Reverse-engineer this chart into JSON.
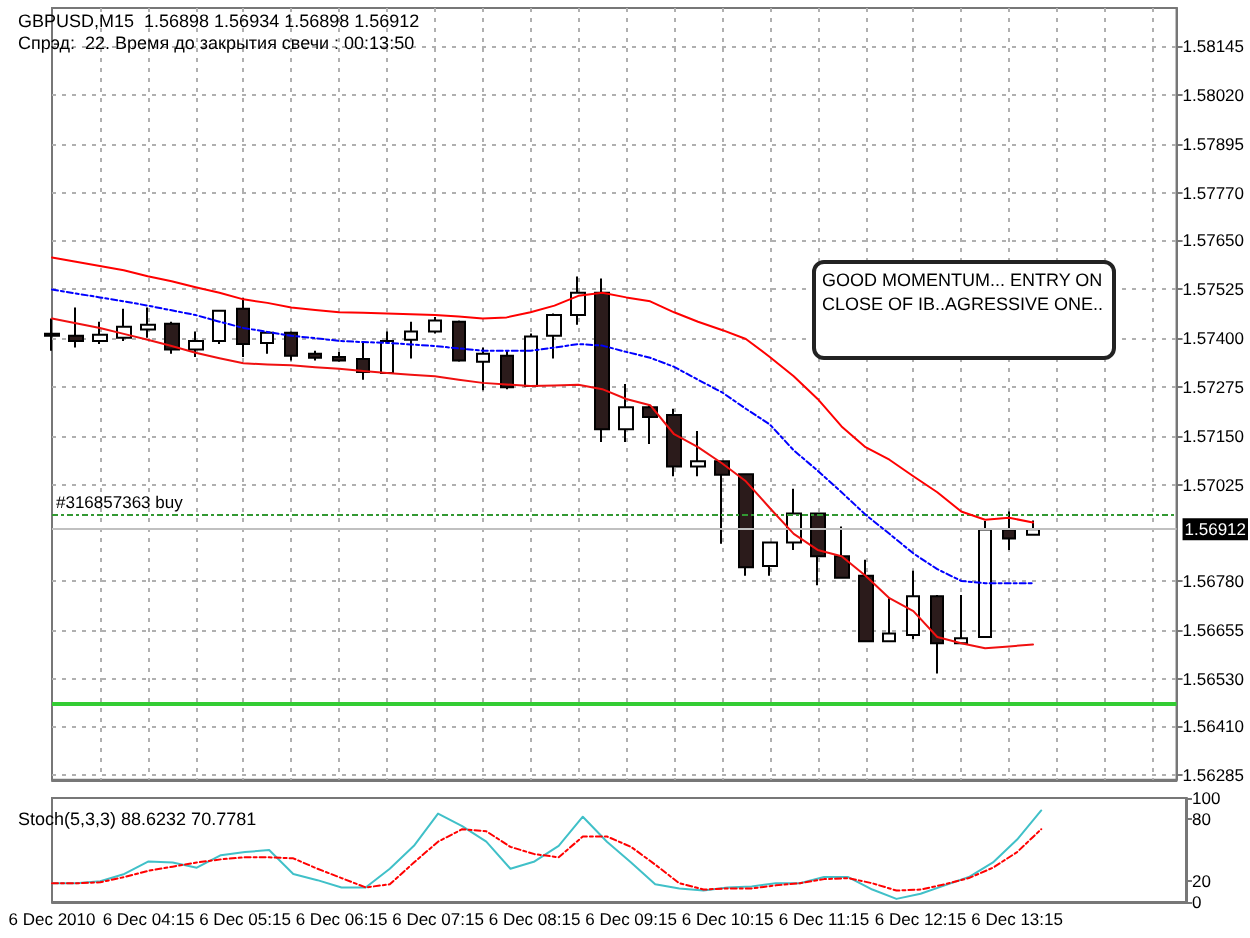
{
  "chart_data": [
    {
      "type": "candlestick",
      "title": "GBPUSD,M15  1.56898 1.56934 1.56898 1.56912",
      "subtitle": "Спрэд:  22. Время до закрытия свечи : 00:13:50",
      "annotations": [
        "GOOD MOMENTUM... ENTRY ON CLOSE OF IB..AGRESSIVE ONE.."
      ],
      "categories": [
        null,
        null,
        null,
        null,
        null,
        null,
        null,
        null,
        null,
        null,
        null,
        null,
        null,
        null,
        null,
        null,
        null,
        null,
        null,
        null,
        null,
        null,
        null,
        null,
        null,
        null,
        null,
        null,
        null,
        null,
        null,
        null,
        null,
        null,
        null,
        null,
        null,
        null,
        null,
        null,
        null,
        null,
        null,
        null,
        null,
        null,
        null,
        null
      ],
      "ohlc": [
        [
          1.5741,
          1.57449,
          1.57367,
          1.57405
        ],
        [
          1.57405,
          1.57477,
          1.57375,
          1.57392
        ],
        [
          1.57392,
          1.57441,
          1.57384,
          1.57408
        ],
        [
          1.574,
          1.57474,
          1.57392,
          1.57428
        ],
        [
          1.57421,
          1.57477,
          1.574,
          1.57433
        ],
        [
          1.57436,
          1.57441,
          1.57359,
          1.5737
        ],
        [
          1.5737,
          1.57416,
          1.57351,
          1.57392
        ],
        [
          1.57392,
          1.57469,
          1.57384,
          1.57469
        ],
        [
          1.57474,
          1.57502,
          1.57351,
          1.57384
        ],
        [
          1.57387,
          1.57416,
          1.57359,
          1.57413
        ],
        [
          1.57413,
          1.57416,
          1.57342,
          1.57354
        ],
        [
          1.57359,
          1.57367,
          1.57342,
          1.57349
        ],
        [
          1.57351,
          1.57364,
          1.57339,
          1.57342
        ],
        [
          1.57346,
          1.57387,
          1.57293,
          1.57313
        ],
        [
          1.5731,
          1.57416,
          1.5731,
          1.57392
        ],
        [
          1.57395,
          1.57441,
          1.57347,
          1.57416
        ],
        [
          1.57416,
          1.57453,
          1.57411,
          1.57444
        ],
        [
          1.57441,
          1.57444,
          1.57339,
          1.57342
        ],
        [
          1.57339,
          1.57375,
          1.57266,
          1.57359
        ],
        [
          1.57354,
          1.57367,
          1.57269,
          1.57274
        ],
        [
          1.57277,
          1.57411,
          1.57277,
          1.57403
        ],
        [
          1.57405,
          1.57462,
          1.57347,
          1.57458
        ],
        [
          1.57458,
          1.57556,
          1.57433,
          1.57515
        ],
        [
          1.57515,
          1.57551,
          1.57134,
          1.57167
        ],
        [
          1.57167,
          1.57282,
          1.57134,
          1.57223
        ],
        [
          1.57223,
          1.57228,
          1.57129,
          1.57198
        ],
        [
          1.57203,
          1.57219,
          1.57047,
          1.57072
        ],
        [
          1.57072,
          1.57162,
          1.57047,
          1.57085
        ],
        [
          1.57085,
          1.57085,
          1.56875,
          1.57051
        ],
        [
          1.57052,
          1.57052,
          1.56793,
          1.56815
        ],
        [
          1.56818,
          1.56878,
          1.56793,
          1.56878
        ],
        [
          1.56878,
          1.57015,
          1.56859,
          1.56952
        ],
        [
          1.56952,
          1.56952,
          1.56769,
          1.56843
        ],
        [
          1.56843,
          1.56919,
          1.56788,
          1.56788
        ],
        [
          1.56793,
          1.56834,
          1.56626,
          1.56626
        ],
        [
          1.56626,
          1.56736,
          1.56626,
          1.56646
        ],
        [
          1.56642,
          1.56806,
          1.56632,
          1.56741
        ],
        [
          1.56741,
          1.56744,
          1.56544,
          1.56621
        ],
        [
          1.56621,
          1.56744,
          1.56621,
          1.56634
        ],
        [
          1.56637,
          1.56933,
          1.56637,
          1.56911
        ],
        [
          1.56911,
          1.56957,
          1.56859,
          1.56888
        ],
        [
          1.56898,
          1.56934,
          1.56898,
          1.56912
        ],
        null,
        null,
        null,
        null,
        null,
        null
      ],
      "series": [
        {
          "type": "line",
          "color": "#ff0000",
          "values": [
            1.57605,
            1.57594,
            1.57583,
            1.57572,
            1.57557,
            1.57544,
            1.57529,
            1.57515,
            1.57498,
            1.57489,
            1.57477,
            1.57471,
            1.57465,
            1.57464,
            1.57462,
            1.5746,
            1.57458,
            1.57454,
            1.57449,
            1.57452,
            1.57465,
            1.57482,
            1.57507,
            1.57515,
            1.57503,
            1.57493,
            1.57465,
            1.57441,
            1.5742,
            1.57397,
            1.57351,
            1.57302,
            1.57244,
            1.57174,
            1.57121,
            1.57089,
            1.57047,
            1.57006,
            1.56957,
            1.56936,
            1.56941,
            1.56929,
            null,
            null,
            null,
            null,
            null,
            null
          ]
        },
        {
          "type": "line",
          "color": "#0000ff",
          "line_style": "dashed",
          "values": [
            1.57523,
            1.57513,
            1.57503,
            1.57493,
            1.57482,
            1.5747,
            1.57458,
            1.57441,
            1.57425,
            1.57415,
            1.57405,
            1.57399,
            1.57392,
            1.57389,
            1.57387,
            1.57383,
            1.57379,
            1.57373,
            1.57367,
            1.57367,
            1.57367,
            1.57375,
            1.57384,
            1.5738,
            1.57364,
            1.57349,
            1.57326,
            1.57293,
            1.57261,
            1.57219,
            1.57179,
            1.57113,
            1.57061,
            1.57006,
            1.56949,
            1.569,
            1.5685,
            1.5681,
            1.5678,
            1.56774,
            1.56774,
            1.56774,
            null,
            null,
            null,
            null,
            null,
            null
          ]
        },
        {
          "type": "line",
          "color": "#f01010",
          "values": [
            1.57449,
            1.57437,
            1.57425,
            1.5741,
            1.57395,
            1.57379,
            1.57362,
            1.57348,
            1.57335,
            1.57332,
            1.5733,
            1.57325,
            1.57321,
            1.57315,
            1.5731,
            1.57306,
            1.57302,
            1.57293,
            1.57285,
            1.57281,
            1.57277,
            1.57278,
            1.5728,
            1.57269,
            1.57244,
            1.57228,
            1.57154,
            1.57121,
            1.5708,
            1.57034,
            1.56966,
            1.569,
            1.56859,
            1.56843,
            1.56793,
            1.56736,
            1.56703,
            1.56637,
            1.56621,
            1.56608,
            1.56613,
            1.56618,
            null,
            null,
            null,
            null,
            null,
            null
          ]
        }
      ],
      "ylim": [
        1.56273,
        1.58241
      ],
      "yticks": [
        1.58145,
        {
          "value": 1.5802,
          "label": "1.58020"
        },
        1.57895,
        {
          "value": 1.5777,
          "label": "1.57770"
        },
        {
          "value": 1.5765,
          "label": "1.57650"
        },
        1.57525,
        {
          "value": 1.574,
          "label": "1.57400"
        },
        1.57275,
        {
          "value": 1.5715,
          "label": "1.57150"
        },
        1.57025,
        {
          "value": 1.5678,
          "label": "1.56780"
        },
        1.56655,
        {
          "value": 1.5653,
          "label": "1.56530"
        },
        {
          "value": 1.5641,
          "label": "1.56410"
        },
        1.56285
      ],
      "ref_lines": [
        {
          "axis": "y",
          "value": 1.56949,
          "label": "#316857363 buy",
          "color": "#339933",
          "line_style": "dashed"
        },
        {
          "axis": "y",
          "value": 1.56912,
          "label": "1.56912",
          "color": "#c0c0c0",
          "line_style": "solid"
        },
        {
          "axis": "y",
          "value": 1.56467,
          "color": "#33cc33",
          "line_style": "solid"
        }
      ],
      "grid": true,
      "marker": "none",
      "tick_labels": "y"
    },
    {
      "type": "line",
      "title": "Stoch(5,3,3) 88.6232 70.7781",
      "categories": [
        "6 Dec 2010",
        null,
        null,
        null,
        "6 Dec 04:15",
        null,
        null,
        null,
        "6 Dec 05:15",
        null,
        null,
        null,
        "6 Dec 06:15",
        null,
        null,
        null,
        "6 Dec 07:15",
        null,
        null,
        null,
        "6 Dec 08:15",
        null,
        null,
        null,
        "6 Dec 09:15",
        null,
        null,
        null,
        "6 Dec 10:15",
        null,
        null,
        null,
        "6 Dec 11:15",
        null,
        null,
        null,
        "6 Dec 12:15",
        null,
        null,
        null,
        "6 Dec 13:15",
        null,
        null,
        null,
        null,
        null,
        null,
        null
      ],
      "series": [
        {
          "color": "#40c0c8",
          "values": [
            18,
            18,
            20,
            27,
            39,
            38,
            33,
            45,
            48,
            50,
            27,
            21,
            14,
            14,
            32,
            54,
            85,
            73,
            58,
            32,
            39,
            54,
            82,
            58,
            38,
            17,
            13,
            11,
            14,
            15,
            18,
            18,
            24,
            24,
            12,
            3,
            8,
            16,
            24,
            38,
            60,
            88,
            null,
            null,
            null,
            null,
            null,
            null
          ]
        },
        {
          "color": "#ff0000",
          "line_style": "dashed",
          "values": [
            18,
            18,
            19,
            24,
            30,
            34,
            38,
            41,
            43,
            43,
            42,
            32,
            23,
            14,
            17,
            38,
            58,
            70,
            68,
            53,
            46,
            43,
            63,
            63,
            53,
            36,
            18,
            12,
            13,
            13,
            16,
            18,
            22,
            23,
            18,
            11,
            12,
            17,
            23,
            33,
            48,
            70,
            null,
            null,
            null,
            null,
            null,
            null
          ]
        }
      ],
      "ylim": [
        0,
        100
      ],
      "yticks": [
        0,
        20,
        80,
        100
      ],
      "grid": false,
      "marker": "none"
    }
  ]
}
